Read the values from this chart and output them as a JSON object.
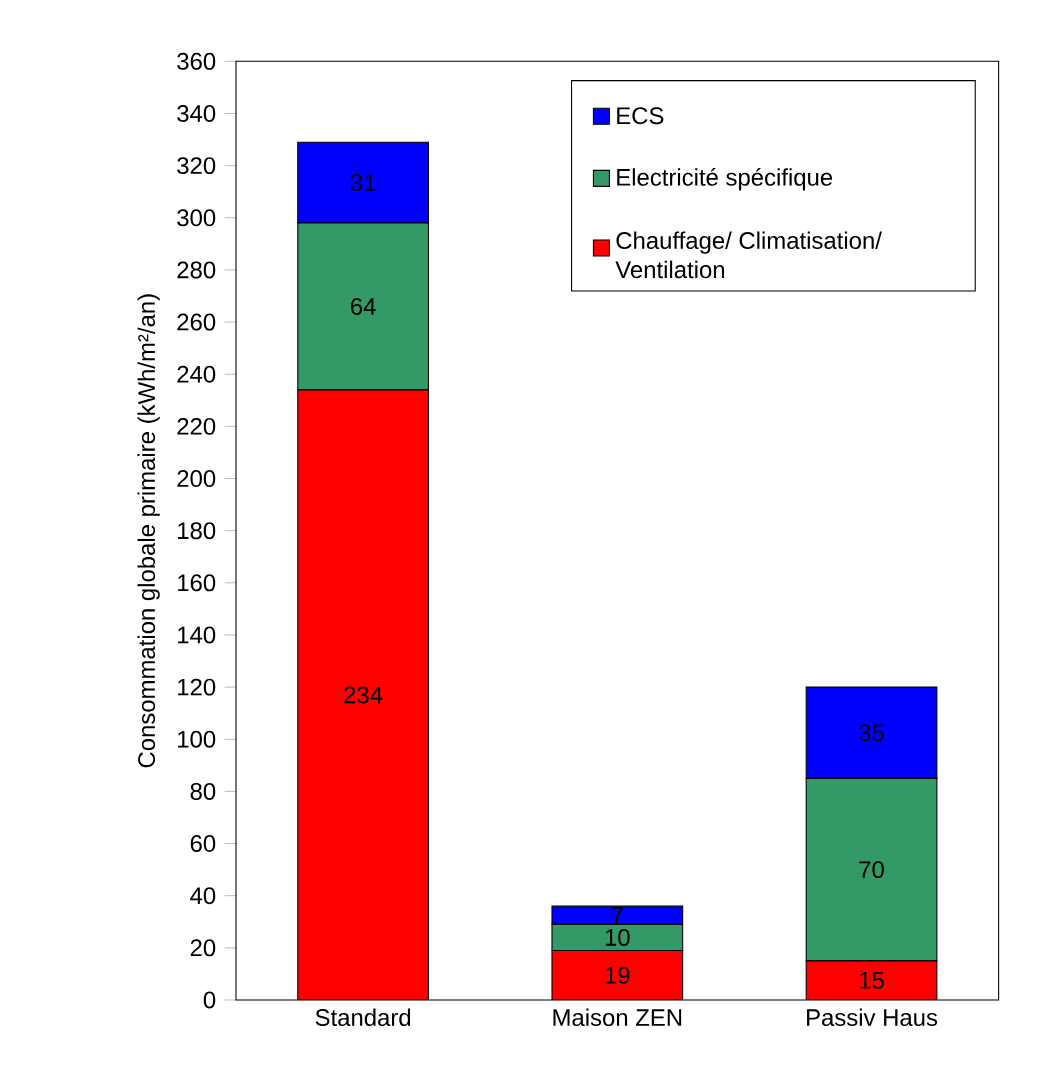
{
  "chart_data": {
    "type": "bar",
    "stacked": true,
    "ylabel": "Consommation globale primaire (kWh/m²/an)",
    "categories": [
      "Standard",
      "Maison ZEN",
      "Passiv Haus"
    ],
    "series": [
      {
        "name": "Chauffage/ Climatisation/ Ventilation",
        "color": "#ff0000",
        "values": [
          234,
          19,
          15
        ]
      },
      {
        "name": "Electricité spécifique",
        "color": "#339966",
        "values": [
          64,
          10,
          70
        ]
      },
      {
        "name": "ECS",
        "color": "#0000ff",
        "values": [
          31,
          7,
          35
        ]
      }
    ],
    "ylim": [
      0,
      360
    ],
    "yticks": [
      0,
      20,
      40,
      60,
      80,
      100,
      120,
      140,
      160,
      180,
      200,
      220,
      240,
      260,
      280,
      300,
      320,
      340,
      360
    ],
    "data_labels": true,
    "legend": "top right",
    "grid": false
  }
}
